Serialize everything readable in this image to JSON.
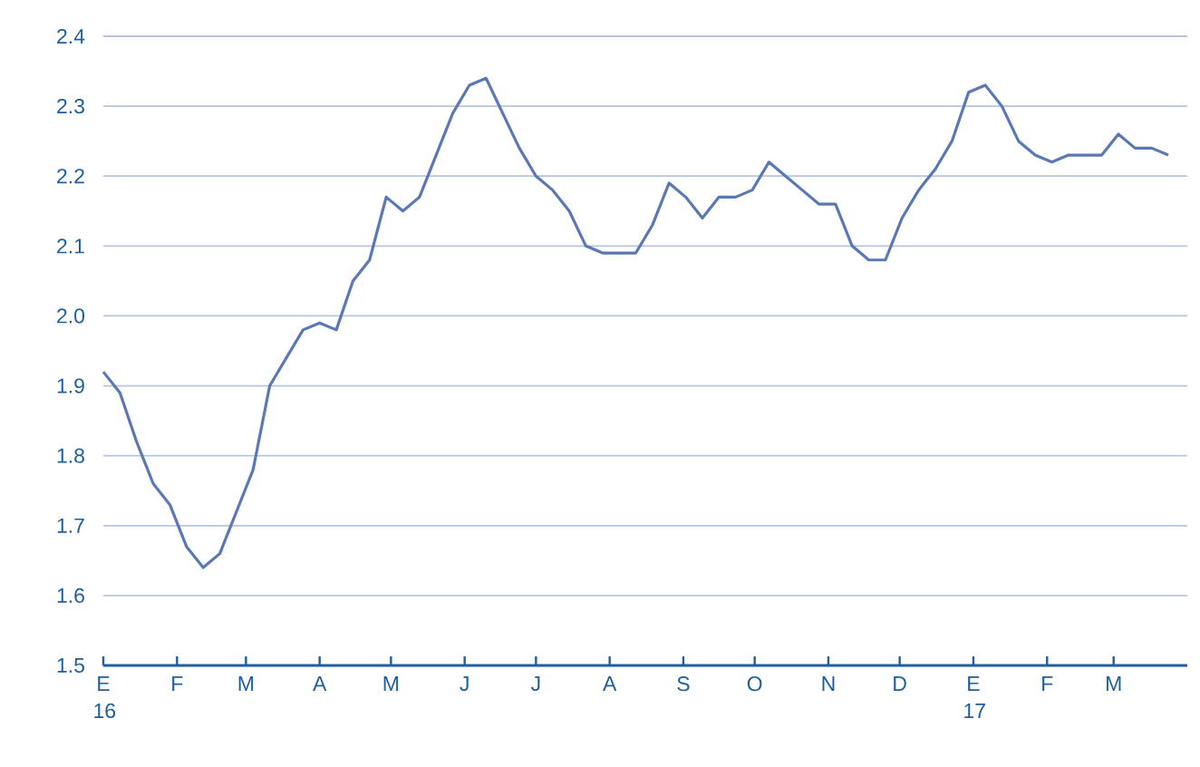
{
  "chart_data": {
    "type": "line",
    "x": [
      "2016-01-01",
      "2016-01-08",
      "2016-01-15",
      "2016-01-22",
      "2016-01-29",
      "2016-02-05",
      "2016-02-12",
      "2016-02-19",
      "2016-02-26",
      "2016-03-04",
      "2016-03-11",
      "2016-03-18",
      "2016-03-25",
      "2016-04-01",
      "2016-04-08",
      "2016-04-15",
      "2016-04-22",
      "2016-04-29",
      "2016-05-06",
      "2016-05-13",
      "2016-05-20",
      "2016-05-27",
      "2016-06-03",
      "2016-06-10",
      "2016-06-17",
      "2016-06-24",
      "2016-07-01",
      "2016-07-08",
      "2016-07-15",
      "2016-07-22",
      "2016-07-29",
      "2016-08-05",
      "2016-08-12",
      "2016-08-19",
      "2016-08-26",
      "2016-09-02",
      "2016-09-09",
      "2016-09-16",
      "2016-09-23",
      "2016-09-30",
      "2016-10-07",
      "2016-10-14",
      "2016-10-21",
      "2016-10-28",
      "2016-11-04",
      "2016-11-11",
      "2016-11-18",
      "2016-11-25",
      "2016-12-02",
      "2016-12-09",
      "2016-12-16",
      "2016-12-23",
      "2016-12-30",
      "2017-01-06",
      "2017-01-13",
      "2017-01-20",
      "2017-01-27",
      "2017-02-03",
      "2017-02-10",
      "2017-02-17",
      "2017-02-24",
      "2017-03-03",
      "2017-03-10",
      "2017-03-17",
      "2017-03-24"
    ],
    "series": [
      {
        "color": "#5b78b6",
        "values": [
          1.92,
          1.89,
          1.82,
          1.76,
          1.73,
          1.67,
          1.64,
          1.66,
          1.72,
          1.78,
          1.9,
          1.94,
          1.98,
          1.99,
          1.98,
          2.05,
          2.08,
          2.17,
          2.15,
          2.17,
          2.23,
          2.29,
          2.33,
          2.34,
          2.29,
          2.24,
          2.2,
          2.18,
          2.15,
          2.1,
          2.09,
          2.09,
          2.09,
          2.13,
          2.19,
          2.17,
          2.14,
          2.17,
          2.17,
          2.18,
          2.22,
          2.2,
          2.18,
          2.16,
          2.16,
          2.1,
          2.08,
          2.08,
          2.14,
          2.18,
          2.21,
          2.25,
          2.32,
          2.33,
          2.3,
          2.25,
          2.23,
          2.22,
          2.23,
          2.23,
          2.23,
          2.26,
          2.24,
          2.24,
          2.23
        ]
      }
    ],
    "xlim": [
      "2016-01-01",
      "2017-04-01"
    ],
    "xticks": [
      {
        "value": "2016-01-01",
        "label": "E 16"
      },
      {
        "value": "2016-02-01",
        "label": "F"
      },
      {
        "value": "2016-03-01",
        "label": "M"
      },
      {
        "value": "2016-04-01",
        "label": "A"
      },
      {
        "value": "2016-05-01",
        "label": "M"
      },
      {
        "value": "2016-06-01",
        "label": "J"
      },
      {
        "value": "2016-07-01",
        "label": "J"
      },
      {
        "value": "2016-08-01",
        "label": "A"
      },
      {
        "value": "2016-09-01",
        "label": "S"
      },
      {
        "value": "2016-10-01",
        "label": "O"
      },
      {
        "value": "2016-11-01",
        "label": "N"
      },
      {
        "value": "2016-12-01",
        "label": "D"
      },
      {
        "value": "2017-01-01",
        "label": "E 17"
      },
      {
        "value": "2017-02-01",
        "label": "F"
      },
      {
        "value": "2017-03-01",
        "label": "M"
      }
    ],
    "ylim": [
      1.5,
      2.4
    ],
    "yticks": [
      1.5,
      1.6,
      1.7,
      1.8,
      1.9,
      {
        "value": 2,
        "label": "2.0"
      },
      2.1,
      2.2,
      2.3,
      2.4
    ],
    "grid": "y",
    "marker": "none",
    "line_style": "solid"
  }
}
